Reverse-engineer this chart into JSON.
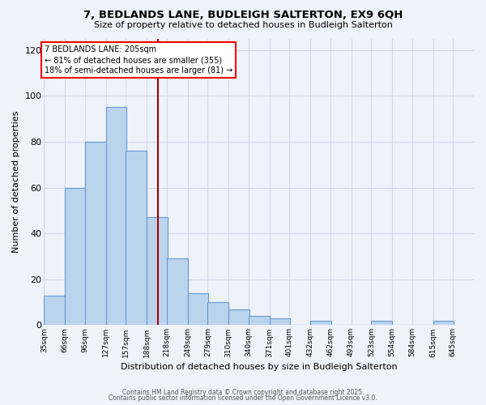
{
  "title": "7, BEDLANDS LANE, BUDLEIGH SALTERTON, EX9 6QH",
  "subtitle": "Size of property relative to detached houses in Budleigh Salterton",
  "xlabel": "Distribution of detached houses by size in Budleigh Salterton",
  "ylabel": "Number of detached properties",
  "bar_values": [
    13,
    60,
    80,
    95,
    76,
    47,
    29,
    14,
    10,
    7,
    4,
    3,
    0,
    2,
    0,
    0,
    2,
    0,
    0,
    2
  ],
  "bin_labels": [
    "35sqm",
    "66sqm",
    "96sqm",
    "127sqm",
    "157sqm",
    "188sqm",
    "218sqm",
    "249sqm",
    "279sqm",
    "310sqm",
    "340sqm",
    "371sqm",
    "401sqm",
    "432sqm",
    "462sqm",
    "493sqm",
    "523sqm",
    "554sqm",
    "584sqm",
    "615sqm",
    "645sqm"
  ],
  "bar_color": "#bad4ee",
  "bar_edge_color": "#6699cc",
  "background_color": "#eef2fb",
  "grid_color": "#d0d8e8",
  "vline_x": 205,
  "bin_edges": [
    35,
    66,
    96,
    127,
    157,
    188,
    218,
    249,
    279,
    310,
    340,
    371,
    401,
    432,
    462,
    493,
    523,
    554,
    584,
    615,
    645
  ],
  "bin_width": 31,
  "annotation_title": "7 BEDLANDS LANE: 205sqm",
  "annotation_line1": "← 81% of detached houses are smaller (355)",
  "annotation_line2": "18% of semi-detached houses are larger (81) →",
  "ylim": [
    0,
    125
  ],
  "yticks": [
    0,
    20,
    40,
    60,
    80,
    100,
    120
  ],
  "footer1": "Contains HM Land Registry data © Crown copyright and database right 2025.",
  "footer2": "Contains public sector information licensed under the Open Government Licence v3.0."
}
